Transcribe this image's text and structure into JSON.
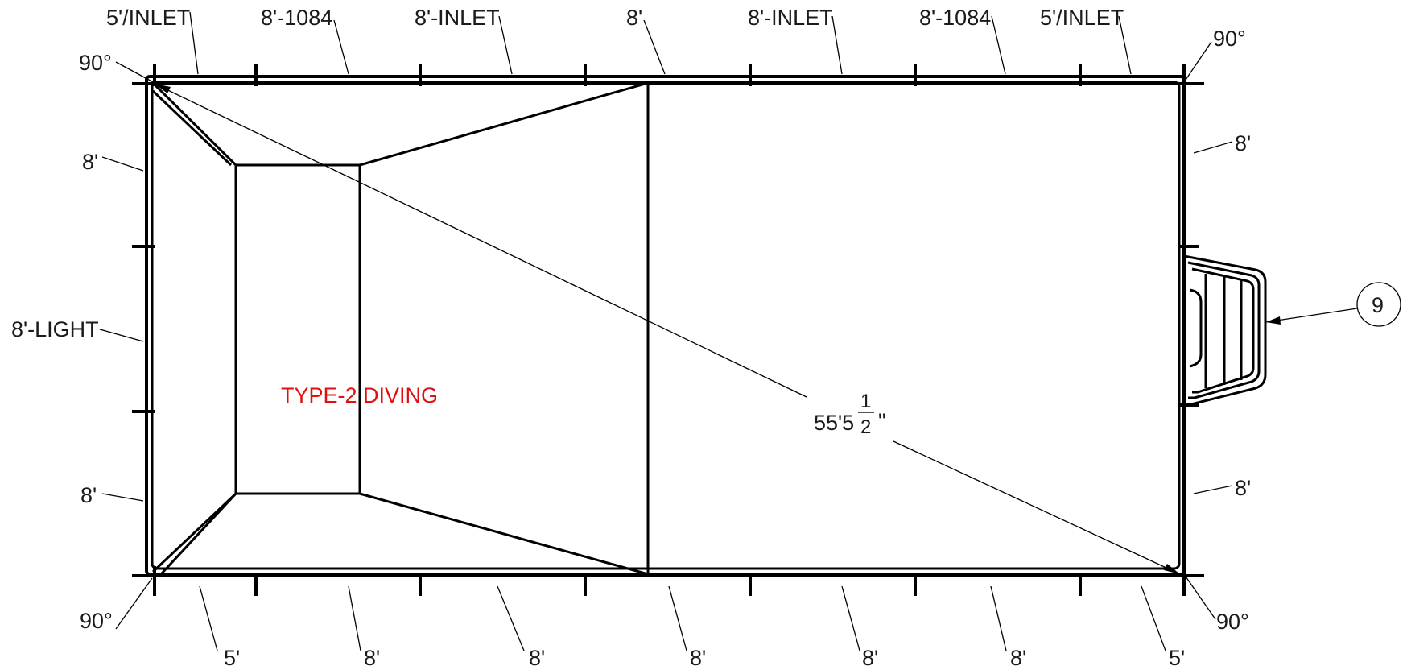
{
  "colors": {
    "line": "#000000",
    "text": "#1a1a1a",
    "accent": "#e01010"
  },
  "labels": {
    "top": [
      "5'/INLET",
      "8'-1084",
      "8'-INLET",
      "8'",
      "8'-INLET",
      "8'-1084",
      "5'/INLET"
    ],
    "bottom": [
      "5'",
      "8'",
      "8'",
      "8'",
      "8'",
      "8'",
      "5'"
    ],
    "left": {
      "upper": "8'",
      "middle": "8'-LIGHT",
      "lower": "8'"
    },
    "right": {
      "upper": "8'",
      "lower": "8'"
    },
    "angles": {
      "top_left": "90°",
      "top_right": "90°",
      "bottom_left": "90°",
      "bottom_right": "90°"
    },
    "diagonal": {
      "whole": "55'5",
      "frac_num": "1",
      "frac_den": "2",
      "unit": "\""
    },
    "type": "TYPE-2 DIVING",
    "callout": "9"
  }
}
